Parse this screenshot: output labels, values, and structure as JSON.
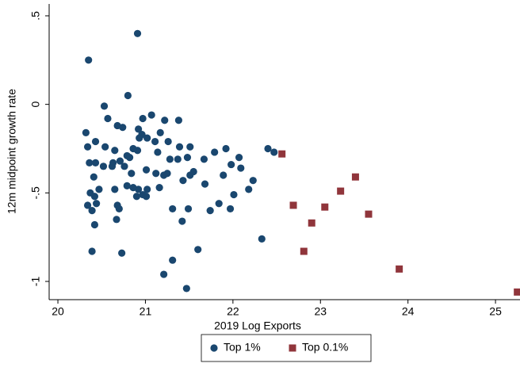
{
  "chart_data": {
    "type": "scatter",
    "xlabel": "2019 Log Exports",
    "ylabel": "12m midpoint growth rate",
    "xlim": [
      19.9,
      25.28
    ],
    "ylim": [
      -1.103,
      0.567
    ],
    "xticks": [
      20,
      21,
      22,
      23,
      24,
      25
    ],
    "yticks": [
      {
        "value": 0.5,
        "label": ".5"
      },
      0,
      {
        "value": -0.5,
        "label": "-.5"
      },
      -1
    ],
    "legend": "bottom",
    "series": [
      {
        "name": "Top 1%",
        "color": "#1a476f",
        "marker": "circle",
        "x": [
          20.91,
          20.35,
          20.8,
          20.53,
          20.32,
          20.57,
          20.68,
          20.74,
          20.97,
          20.34,
          20.43,
          20.54,
          20.65,
          20.79,
          20.91,
          20.92,
          20.96,
          21.07,
          21.11,
          21.14,
          21.26,
          21.38,
          21.39,
          21.48,
          21.51,
          21.28,
          21.37,
          21.55,
          21.67,
          21.79,
          21.92,
          22.07,
          21.68,
          21.74,
          21.84,
          21.89,
          21.98,
          22.01,
          21.97,
          22.18,
          22.23,
          22.09,
          22.4,
          22.47,
          22.33,
          21.22,
          21.17,
          21.02,
          20.93,
          20.86,
          20.82,
          20.71,
          20.63,
          20.52,
          20.43,
          20.36,
          20.41,
          20.47,
          20.62,
          20.76,
          20.84,
          21.01,
          21.12,
          21.25,
          21.43,
          21.16,
          21.31,
          21.42,
          21.49,
          21.6,
          21.31,
          21.21,
          21.47,
          21.02,
          21.01,
          20.9,
          20.97,
          20.37,
          20.42,
          20.34,
          20.39,
          20.44,
          20.68,
          20.7,
          20.65,
          20.79,
          20.92,
          20.67,
          20.42,
          20.39,
          20.73,
          21.21,
          21.51,
          20.86
        ],
        "y": [
          0.4,
          0.25,
          0.05,
          -0.01,
          -0.16,
          -0.08,
          -0.12,
          -0.13,
          -0.08,
          -0.24,
          -0.21,
          -0.24,
          -0.26,
          -0.29,
          -0.26,
          -0.14,
          -0.17,
          -0.06,
          -0.21,
          -0.27,
          -0.21,
          -0.09,
          -0.24,
          -0.3,
          -0.24,
          -0.31,
          -0.31,
          -0.38,
          -0.31,
          -0.27,
          -0.25,
          -0.3,
          -0.45,
          -0.6,
          -0.56,
          -0.4,
          -0.34,
          -0.51,
          -0.59,
          -0.48,
          -0.43,
          -0.36,
          -0.25,
          -0.27,
          -0.76,
          -0.09,
          -0.16,
          -0.19,
          -0.19,
          -0.25,
          -0.3,
          -0.32,
          -0.33,
          -0.35,
          -0.33,
          -0.33,
          -0.41,
          -0.48,
          -0.35,
          -0.35,
          -0.39,
          -0.37,
          -0.39,
          -0.39,
          -0.43,
          -0.47,
          -0.59,
          -0.66,
          -0.59,
          -0.82,
          -0.88,
          -0.96,
          -1.04,
          -0.48,
          -0.52,
          -0.52,
          -0.51,
          -0.5,
          -0.52,
          -0.57,
          -0.6,
          -0.56,
          -0.57,
          -0.59,
          -0.48,
          -0.46,
          -0.48,
          -0.65,
          -0.68,
          -0.83,
          -0.84,
          -0.4,
          -0.4,
          -0.47
        ]
      },
      {
        "name": "Top 0.1%",
        "color": "#90353b",
        "marker": "square",
        "x": [
          22.56,
          22.69,
          22.81,
          22.9,
          23.05,
          23.23,
          23.4,
          23.55,
          23.9,
          25.25
        ],
        "y": [
          -0.28,
          -0.57,
          -0.83,
          -0.67,
          -0.58,
          -0.49,
          -0.41,
          -0.62,
          -0.93,
          -1.06
        ]
      }
    ]
  }
}
